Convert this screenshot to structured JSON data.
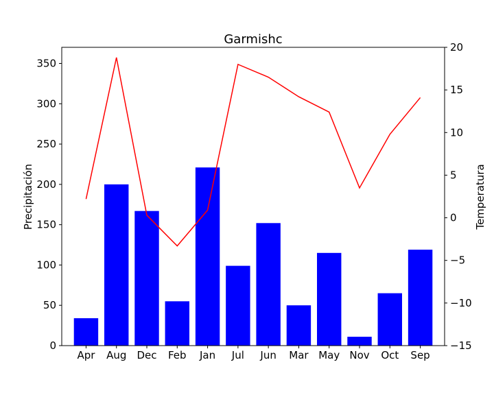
{
  "colors": {
    "bar": "#0000ff",
    "line": "#ff0000",
    "axis": "#000000",
    "background": "#ffffff"
  },
  "chart_data": {
    "type": "bar",
    "title": "Garmishc",
    "xlabel": "",
    "ylabel": "Precipitación",
    "y2label": "Temperatura",
    "categories": [
      "Apr",
      "Aug",
      "Dec",
      "Feb",
      "Jan",
      "Jul",
      "Jun",
      "Mar",
      "May",
      "Nov",
      "Oct",
      "Sep"
    ],
    "series": [
      {
        "type": "bar",
        "axis": "left",
        "values": [
          34,
          200,
          167,
          55,
          221,
          99,
          152,
          50,
          115,
          11,
          65,
          119
        ]
      },
      {
        "type": "line",
        "axis": "right",
        "values": [
          2.2,
          18.8,
          0.3,
          -3.3,
          0.9,
          18.0,
          16.5,
          14.2,
          12.4,
          3.5,
          9.8,
          14.1
        ]
      }
    ],
    "ylim": [
      0,
      370
    ],
    "y2lim": [
      -15,
      20
    ],
    "yticks": [
      0,
      50,
      100,
      150,
      200,
      250,
      300,
      350
    ],
    "y2ticks": [
      -15,
      -10,
      -5,
      0,
      5,
      10,
      15,
      20
    ],
    "grid": false
  }
}
